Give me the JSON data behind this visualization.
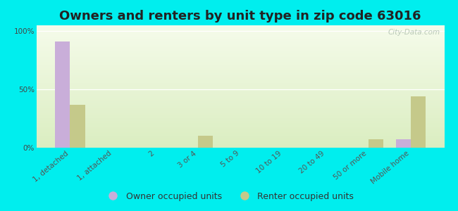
{
  "title": "Owners and renters by unit type in zip code 63016",
  "categories": [
    "1, detached",
    "1, attached",
    "2",
    "3 or 4",
    "5 to 9",
    "10 to 19",
    "20 to 49",
    "50 or more",
    "Mobile home"
  ],
  "owner_values": [
    91,
    0,
    0,
    0,
    0,
    0,
    0,
    0,
    7
  ],
  "renter_values": [
    37,
    0,
    0,
    10,
    0,
    0,
    0,
    7,
    44
  ],
  "owner_color": "#c9aed9",
  "renter_color": "#c5c98a",
  "background_color": "#00eeee",
  "ylabel_ticks": [
    "0%",
    "50%",
    "100%"
  ],
  "ytick_vals": [
    0,
    50,
    100
  ],
  "ylim": [
    0,
    105
  ],
  "bar_width": 0.35,
  "legend_owner": "Owner occupied units",
  "legend_renter": "Renter occupied units",
  "title_fontsize": 13,
  "tick_fontsize": 7.5,
  "legend_fontsize": 9,
  "plot_bg_top": "#f5fbea",
  "plot_bg_bottom": "#daedc0",
  "grid_color": "#ffffff",
  "watermark": "City-Data.com",
  "watermark_color": "#b0c0b0"
}
